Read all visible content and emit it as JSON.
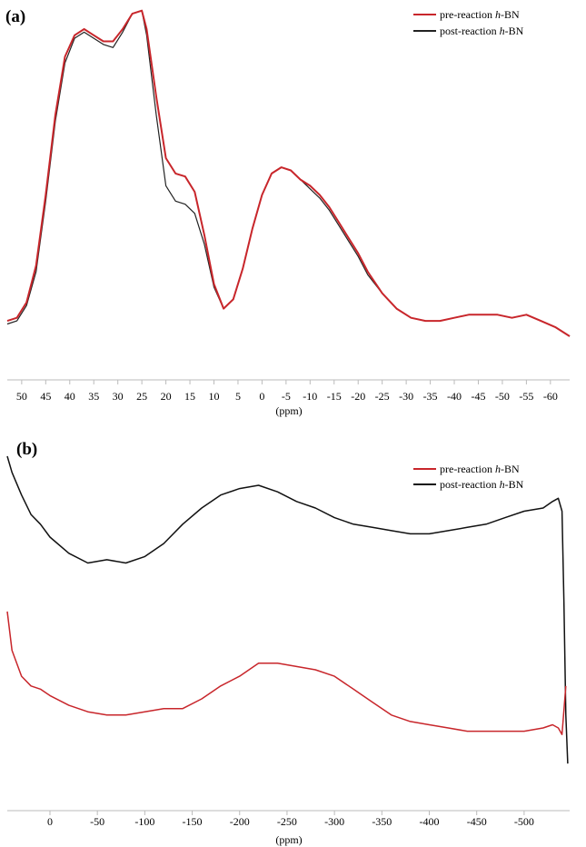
{
  "chart_data": [
    {
      "type": "line",
      "panel_label": "(a)",
      "xlabel": "(ppm)",
      "xlim": [
        53,
        -64
      ],
      "x_reversed": true,
      "xticks": [
        "50",
        "45",
        "40",
        "35",
        "30",
        "25",
        "20",
        "15",
        "10",
        "5",
        "0",
        "-5",
        "-10",
        "-15",
        "-20",
        "-25",
        "-30",
        "-35",
        "-40",
        "-45",
        "-50",
        "-55",
        "-60"
      ],
      "xtick_values": [
        50,
        45,
        40,
        35,
        30,
        25,
        20,
        15,
        10,
        5,
        0,
        -5,
        -10,
        -15,
        -20,
        -25,
        -30,
        -35,
        -40,
        -45,
        -50,
        -55,
        -60
      ],
      "ylim": [
        0,
        1
      ],
      "legend_position": "top-right",
      "series": [
        {
          "name": "pre-reaction h-BN",
          "name_prefix": "pre-reaction ",
          "name_italic": "h",
          "name_suffix": "-BN",
          "color": "#c8262b",
          "x": [
            53,
            51,
            49,
            47,
            45,
            43,
            41,
            39,
            37,
            35,
            33,
            31,
            29,
            27,
            25,
            24,
            22,
            20,
            18,
            16,
            14,
            12,
            10,
            8,
            6,
            4,
            2,
            0,
            -2,
            -4,
            -6,
            -8,
            -10,
            -12,
            -14,
            -16,
            -18,
            -20,
            -22,
            -25,
            -28,
            -31,
            -34,
            -37,
            -40,
            -43,
            -46,
            -49,
            -52,
            -55,
            -58,
            -61,
            -64
          ],
          "y": [
            0.05,
            0.06,
            0.11,
            0.23,
            0.46,
            0.72,
            0.91,
            0.98,
            1.0,
            0.98,
            0.96,
            0.96,
            1.0,
            1.05,
            1.06,
            1.0,
            0.78,
            0.58,
            0.53,
            0.52,
            0.47,
            0.33,
            0.17,
            0.09,
            0.12,
            0.22,
            0.35,
            0.46,
            0.53,
            0.55,
            0.54,
            0.51,
            0.49,
            0.46,
            0.42,
            0.37,
            0.32,
            0.27,
            0.21,
            0.14,
            0.09,
            0.06,
            0.05,
            0.05,
            0.06,
            0.07,
            0.07,
            0.07,
            0.06,
            0.07,
            0.05,
            0.03,
            0.0
          ]
        },
        {
          "name": "post-reaction h-BN",
          "name_prefix": "post-reaction ",
          "name_italic": "h",
          "name_suffix": "-BN",
          "color": "#222222",
          "x": [
            53,
            51,
            49,
            47,
            45,
            43,
            41,
            39,
            37,
            35,
            33,
            31,
            29,
            27,
            25,
            24,
            22,
            20,
            18,
            16,
            14,
            12,
            10,
            8,
            6,
            4,
            2,
            0,
            -2,
            -4,
            -6,
            -8,
            -10,
            -12,
            -14,
            -16,
            -18,
            -20,
            -22,
            -25,
            -28,
            -31,
            -34,
            -37,
            -40,
            -43,
            -46,
            -49,
            -52,
            -55,
            -58,
            -61,
            -64
          ],
          "y": [
            0.04,
            0.05,
            0.1,
            0.21,
            0.44,
            0.7,
            0.89,
            0.97,
            0.99,
            0.97,
            0.95,
            0.94,
            0.99,
            1.05,
            1.06,
            0.98,
            0.72,
            0.49,
            0.44,
            0.43,
            0.4,
            0.3,
            0.16,
            0.09,
            0.12,
            0.22,
            0.35,
            0.46,
            0.53,
            0.55,
            0.54,
            0.51,
            0.48,
            0.45,
            0.41,
            0.36,
            0.31,
            0.26,
            0.2,
            0.14,
            0.09,
            0.06,
            0.05,
            0.05,
            0.06,
            0.07,
            0.07,
            0.07,
            0.06,
            0.07,
            0.05,
            0.03,
            0.0
          ]
        }
      ]
    },
    {
      "type": "line",
      "panel_label": "(b)",
      "xlabel": "(ppm)",
      "xlim": [
        45,
        -548
      ],
      "x_reversed": true,
      "xticks": [
        "0",
        "-50",
        "-100",
        "-150",
        "-200",
        "-250",
        "-300",
        "-350",
        "-400",
        "-450",
        "-500"
      ],
      "xtick_values": [
        0,
        -50,
        -100,
        -150,
        -200,
        -250,
        -300,
        -350,
        -400,
        -450,
        -500
      ],
      "ylim": [
        0,
        1
      ],
      "legend_position": "top-right",
      "series": [
        {
          "name": "pre-reaction h-BN",
          "name_prefix": "pre-reaction ",
          "name_italic": "h",
          "name_suffix": "-BN",
          "color": "#c8262b",
          "x": [
            45,
            40,
            30,
            20,
            10,
            0,
            -20,
            -40,
            -60,
            -80,
            -100,
            -120,
            -140,
            -160,
            -180,
            -200,
            -220,
            -240,
            -260,
            -280,
            -300,
            -320,
            -340,
            -360,
            -380,
            -400,
            -420,
            -440,
            -460,
            -480,
            -500,
            -520,
            -530,
            -536,
            -540,
            -544
          ],
          "y": [
            0.52,
            0.4,
            0.32,
            0.29,
            0.28,
            0.26,
            0.23,
            0.21,
            0.2,
            0.2,
            0.21,
            0.22,
            0.22,
            0.25,
            0.29,
            0.32,
            0.36,
            0.36,
            0.35,
            0.34,
            0.32,
            0.28,
            0.24,
            0.2,
            0.18,
            0.17,
            0.16,
            0.15,
            0.15,
            0.15,
            0.15,
            0.16,
            0.17,
            0.16,
            0.14,
            0.29
          ]
        },
        {
          "name": "post-reaction h-BN",
          "name_prefix": "post-reaction ",
          "name_italic": "h",
          "name_suffix": "-BN",
          "color": "#111111",
          "x": [
            45,
            40,
            30,
            20,
            10,
            0,
            -20,
            -40,
            -60,
            -80,
            -100,
            -120,
            -140,
            -160,
            -180,
            -200,
            -220,
            -240,
            -260,
            -280,
            -300,
            -320,
            -340,
            -360,
            -380,
            -400,
            -420,
            -440,
            -460,
            -480,
            -500,
            -520,
            -530,
            -536,
            -540,
            -542,
            -544,
            -546
          ],
          "y": [
            1.0,
            0.95,
            0.88,
            0.82,
            0.79,
            0.75,
            0.7,
            0.67,
            0.68,
            0.67,
            0.69,
            0.73,
            0.79,
            0.84,
            0.88,
            0.9,
            0.91,
            0.89,
            0.86,
            0.84,
            0.81,
            0.79,
            0.78,
            0.77,
            0.76,
            0.76,
            0.77,
            0.78,
            0.79,
            0.81,
            0.83,
            0.84,
            0.86,
            0.87,
            0.83,
            0.55,
            0.2,
            0.05
          ]
        }
      ]
    }
  ]
}
